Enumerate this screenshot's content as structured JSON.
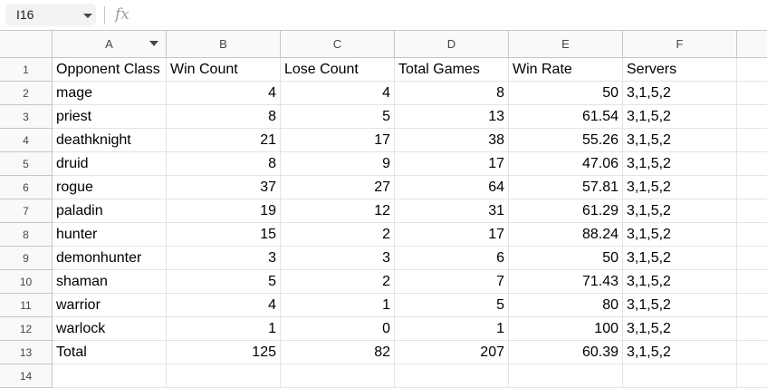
{
  "formula_bar": {
    "name_box": "I16",
    "fx_label": "fx",
    "formula": ""
  },
  "columns": [
    "A",
    "B",
    "C",
    "D",
    "E",
    "F"
  ],
  "row_numbers": [
    "1",
    "2",
    "3",
    "4",
    "5",
    "6",
    "7",
    "8",
    "9",
    "10",
    "11",
    "12",
    "13",
    "14"
  ],
  "header": [
    "Opponent Class",
    "Win Count",
    "Lose Count",
    "Total Games",
    "Win Rate",
    "Servers"
  ],
  "rows": [
    [
      "mage",
      "4",
      "4",
      "8",
      "50",
      "3,1,5,2"
    ],
    [
      "priest",
      "8",
      "5",
      "13",
      "61.54",
      "3,1,5,2"
    ],
    [
      "deathknight",
      "21",
      "17",
      "38",
      "55.26",
      "3,1,5,2"
    ],
    [
      "druid",
      "8",
      "9",
      "17",
      "47.06",
      "3,1,5,2"
    ],
    [
      "rogue",
      "37",
      "27",
      "64",
      "57.81",
      "3,1,5,2"
    ],
    [
      "paladin",
      "19",
      "12",
      "31",
      "61.29",
      "3,1,5,2"
    ],
    [
      "hunter",
      "15",
      "2",
      "17",
      "88.24",
      "3,1,5,2"
    ],
    [
      "demonhunter",
      "3",
      "3",
      "6",
      "50",
      "3,1,5,2"
    ],
    [
      "shaman",
      "5",
      "2",
      "7",
      "71.43",
      "3,1,5,2"
    ],
    [
      "warrior",
      "4",
      "1",
      "5",
      "80",
      "3,1,5,2"
    ],
    [
      "warlock",
      "1",
      "0",
      "1",
      "100",
      "3,1,5,2"
    ],
    [
      "Total",
      "125",
      "82",
      "207",
      "60.39",
      "3,1,5,2"
    ]
  ],
  "icons": {
    "name_box_dropdown": "chevron-down-icon",
    "formula": "fx-icon",
    "column_filter": "filter-dropdown-icon"
  }
}
